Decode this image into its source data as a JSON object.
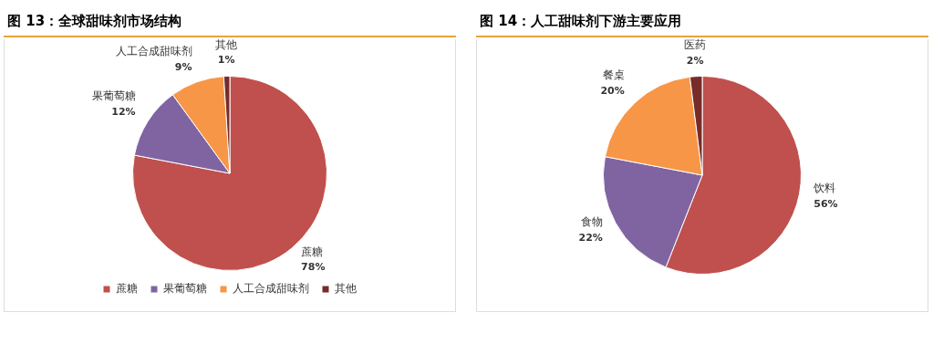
{
  "chart_data": [
    {
      "type": "pie",
      "title": "图 13：全球甜味剂市场结构",
      "categories": [
        "蔗糖",
        "果葡萄糖",
        "人工合成甜味剂",
        "其他"
      ],
      "values": [
        78,
        12,
        9,
        1
      ],
      "colors": [
        "#c0504d",
        "#8064a2",
        "#f79646",
        "#772c2a"
      ],
      "value_labels": [
        "78%",
        "12%",
        "9%",
        "1%"
      ],
      "legend": "bottom"
    },
    {
      "type": "pie",
      "title": "图 14：人工甜味剂下游主要应用",
      "categories": [
        "饮料",
        "食物",
        "餐桌",
        "医药"
      ],
      "values": [
        56,
        22,
        20,
        2
      ],
      "colors": [
        "#c0504d",
        "#8064a2",
        "#f79646",
        "#772c2a"
      ],
      "value_labels": [
        "56%",
        "22%",
        "20%",
        "2%"
      ]
    }
  ]
}
